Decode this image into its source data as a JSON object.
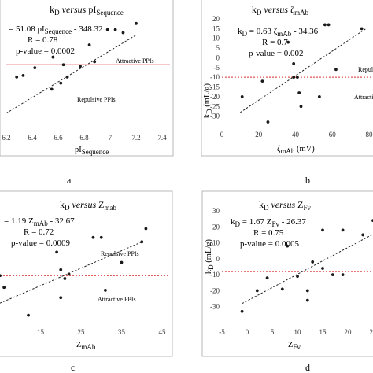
{
  "panels": [
    {
      "letter": "a",
      "title_main": "k",
      "title_sub": "D",
      "title_versus": "versus",
      "title_var": "pI",
      "title_var_sub": "Sequence",
      "eq_line1_prefix": "= 51.08 pI",
      "eq_line1_sub": "Sequence",
      "eq_line1_suffix": " - 348.32",
      "eq_line2": "R = 0.78",
      "eq_line3": "p-value = 0.0002",
      "xlabel": "pI",
      "xlabel_sub": "Sequence",
      "ylabel": "",
      "upper_note": "Attractive PPIs",
      "lower_note": "Repulsive PPIs"
    },
    {
      "letter": "b",
      "title_main": "k",
      "title_sub": "D",
      "title_versus": "versus",
      "title_var": "ζ",
      "title_var_sub": "mAb",
      "eq_line1_prefix": "k",
      "eq_line1_pre_sub": "D",
      "eq_line1_mid": " = 0.63 ζ",
      "eq_line1_sub": "mAb",
      "eq_line1_suffix": " - 34.36",
      "eq_line2": "R = 0.7",
      "eq_line3": "p-value = 0.002",
      "xlabel": "ζ",
      "xlabel_sub": "mAb",
      "xlabel_suffix": " (mV)",
      "ylabel": "k",
      "ylabel_sub": "D",
      "ylabel_suffix": " (mL/g)",
      "upper_note": "Repulsi",
      "lower_note": "Attracti"
    },
    {
      "letter": "c",
      "title_main": "k",
      "title_sub": "D",
      "title_versus": "versus",
      "title_var": "Z",
      "title_var_sub": "mab",
      "eq_line1_prefix": "= 1.19 Z",
      "eq_line1_sub": "mAb",
      "eq_line1_suffix": " - 32.67",
      "eq_line2": "R = 0.72",
      "eq_line3": "p-value = 0.0009",
      "xlabel": "Z",
      "xlabel_sub": "mAb",
      "ylabel": "",
      "upper_note": "Repulsive PPIs",
      "lower_note": "Attractive PPIs"
    },
    {
      "letter": "d",
      "title_main": "k",
      "title_sub": "D",
      "title_versus": "versus",
      "title_var": "Z",
      "title_var_sub": "Fv",
      "eq_line1_prefix": "k",
      "eq_line1_pre_sub": "D",
      "eq_line1_mid": " = 1.67 Z",
      "eq_line1_sub": "Fv",
      "eq_line1_suffix": " - 26.37",
      "eq_line2": "R = 0.75",
      "eq_line3": "p-value = 0.0005",
      "xlabel": "Z",
      "xlabel_sub": "Fv",
      "ylabel": "k",
      "ylabel_sub": "D",
      "ylabel_suffix": " (mL/g)",
      "upper_note": "",
      "lower_note": ""
    }
  ],
  "chart_data": [
    {
      "type": "scatter",
      "title": "kD versus pISequence",
      "xlabel": "pISequence",
      "ylabel": "",
      "xlim": [
        6.2,
        7.4
      ],
      "xticks": [
        "6.2",
        "6.4",
        "6.6",
        "6.8",
        "7",
        "7.2",
        "7.4"
      ],
      "ylim": [
        -40,
        30
      ],
      "reference_y": 0,
      "reference_style": "solid",
      "trendline": {
        "slope": 51.08,
        "intercept": -348.32,
        "x_range": [
          6.2,
          7.2
        ]
      },
      "points": [
        {
          "x": 6.28,
          "y": -8
        },
        {
          "x": 6.33,
          "y": -7
        },
        {
          "x": 6.42,
          "y": -2
        },
        {
          "x": 6.55,
          "y": -16
        },
        {
          "x": 6.56,
          "y": 5
        },
        {
          "x": 6.62,
          "y": -12
        },
        {
          "x": 6.64,
          "y": 0
        },
        {
          "x": 6.67,
          "y": -8
        },
        {
          "x": 6.77,
          "y": -1
        },
        {
          "x": 6.84,
          "y": 13
        },
        {
          "x": 6.88,
          "y": 2
        },
        {
          "x": 6.98,
          "y": 23
        },
        {
          "x": 7.04,
          "y": 23
        },
        {
          "x": 7.1,
          "y": 21
        },
        {
          "x": 7.2,
          "y": 27
        }
      ]
    },
    {
      "type": "scatter",
      "title": "kD versus ζmAb",
      "xlabel": "ζmAb (mV)",
      "ylabel": "kD (mL/g)",
      "xlim": [
        0,
        80
      ],
      "ylim": [
        -35,
        20
      ],
      "xticks": [
        "0",
        "20",
        "40",
        "60",
        "80"
      ],
      "yticks": [
        "-30",
        "-25",
        "-20",
        "-15",
        "-10",
        "-5",
        "0",
        "5",
        "10",
        "15",
        "20"
      ],
      "reference_y": -10,
      "reference_style": "dashed",
      "trendline": {
        "slope": 0.63,
        "intercept": -34.36,
        "x_range": [
          10,
          78
        ]
      },
      "points": [
        {
          "x": 11,
          "y": -20
        },
        {
          "x": 22,
          "y": -12
        },
        {
          "x": 25,
          "y": -33
        },
        {
          "x": 36,
          "y": 8
        },
        {
          "x": 39,
          "y": -3
        },
        {
          "x": 39,
          "y": -10
        },
        {
          "x": 41,
          "y": -10
        },
        {
          "x": 42,
          "y": -18
        },
        {
          "x": 43,
          "y": -25
        },
        {
          "x": 53,
          "y": -20
        },
        {
          "x": 56,
          "y": 17
        },
        {
          "x": 58,
          "y": 17
        },
        {
          "x": 62,
          "y": -6
        },
        {
          "x": 76,
          "y": 15
        }
      ]
    },
    {
      "type": "scatter",
      "title": "kD versus Zmab",
      "xlabel": "ZmAb",
      "ylabel": "",
      "xlim": [
        5,
        45
      ],
      "ylim": [
        -40,
        35
      ],
      "xticks": [
        "15",
        "25",
        "35",
        "45"
      ],
      "reference_y": -8,
      "reference_style": "dashed",
      "trendline": {
        "slope": 1.19,
        "intercept": -32.67,
        "x_range": [
          5,
          40
        ]
      },
      "points": [
        {
          "x": 5,
          "y": -8
        },
        {
          "x": 6,
          "y": -16
        },
        {
          "x": 12,
          "y": -35
        },
        {
          "x": 19,
          "y": 8
        },
        {
          "x": 20,
          "y": -4
        },
        {
          "x": 21,
          "y": -10
        },
        {
          "x": 22,
          "y": -7
        },
        {
          "x": 20,
          "y": -23
        },
        {
          "x": 28,
          "y": 18
        },
        {
          "x": 30,
          "y": 18
        },
        {
          "x": 31,
          "y": -18
        },
        {
          "x": 35,
          "y": 1
        },
        {
          "x": 40,
          "y": 15
        },
        {
          "x": 41,
          "y": 24
        }
      ]
    },
    {
      "type": "scatter",
      "title": "kD versus ZFv",
      "xlabel": "ZFv",
      "ylabel": "kD (mL/g)",
      "xlim": [
        -5,
        25
      ],
      "ylim": [
        -40,
        30
      ],
      "xticks": [
        "-5",
        "0",
        "5",
        "10",
        "15",
        "20",
        "25"
      ],
      "yticks": [
        "-30",
        "-20",
        "-10",
        "0",
        "10",
        "20",
        "30"
      ],
      "reference_y": -8,
      "reference_style": "dashed",
      "trendline": {
        "slope": 1.67,
        "intercept": -26.37,
        "x_range": [
          -1,
          25
        ]
      },
      "points": [
        {
          "x": -1,
          "y": -33
        },
        {
          "x": 2,
          "y": -20
        },
        {
          "x": 4,
          "y": -12
        },
        {
          "x": 7,
          "y": -19
        },
        {
          "x": 8,
          "y": 8
        },
        {
          "x": 10,
          "y": -11
        },
        {
          "x": 12,
          "y": -20
        },
        {
          "x": 12,
          "y": -26
        },
        {
          "x": 13,
          "y": -2
        },
        {
          "x": 15,
          "y": -6
        },
        {
          "x": 15,
          "y": 18
        },
        {
          "x": 17,
          "y": -10
        },
        {
          "x": 19,
          "y": 18
        },
        {
          "x": 19,
          "y": -10
        },
        {
          "x": 23,
          "y": 15
        },
        {
          "x": 25,
          "y": 24
        }
      ]
    }
  ]
}
